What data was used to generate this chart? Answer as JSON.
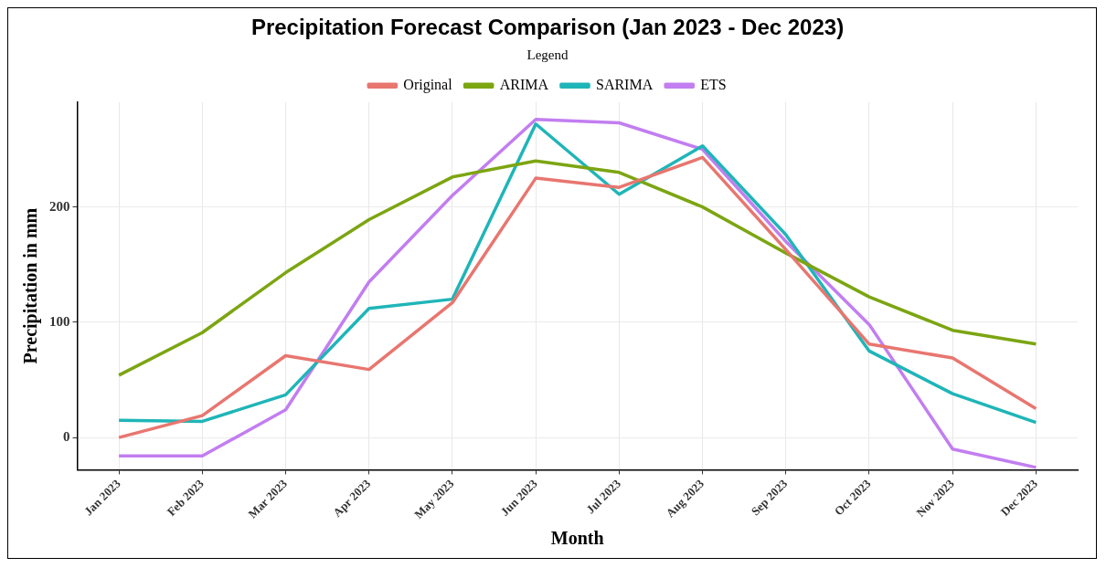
{
  "chart_data": {
    "type": "line",
    "title": "Precipitation Forecast Comparison (Jan 2023 - Dec 2023)",
    "xlabel": "Month",
    "ylabel": "Precipitation in mm",
    "legend_title": "Legend",
    "legend": "top",
    "categories": [
      "Jan 2023",
      "Feb 2023",
      "Mar 2023",
      "Apr 2023",
      "May 2023",
      "Jun 2023",
      "Jul 2023",
      "Aug 2023",
      "Sep 2023",
      "Oct 2023",
      "Nov 2023",
      "Dec 2023"
    ],
    "series": [
      {
        "name": "Original",
        "color": "#e8766f",
        "values": [
          0,
          19,
          71,
          59,
          117,
          225,
          217,
          243,
          163,
          81,
          69,
          25
        ]
      },
      {
        "name": "ARIMA",
        "color": "#7ca512",
        "values": [
          54,
          91,
          143,
          189,
          226,
          240,
          230,
          200,
          160,
          122,
          93,
          81
        ]
      },
      {
        "name": "SARIMA",
        "color": "#1fb5b8",
        "values": [
          15,
          14,
          37,
          112,
          120,
          272,
          211,
          253,
          176,
          75,
          38,
          13
        ]
      },
      {
        "name": "ETS",
        "color": "#c27ef0",
        "values": [
          -16,
          -16,
          24,
          135,
          210,
          276,
          273,
          250,
          170,
          98,
          -10,
          -26
        ]
      }
    ],
    "ylim": [
      -28,
      291
    ],
    "yticks": [
      0,
      100,
      200
    ],
    "grid": true,
    "line_style": "solid",
    "marker": "none"
  }
}
